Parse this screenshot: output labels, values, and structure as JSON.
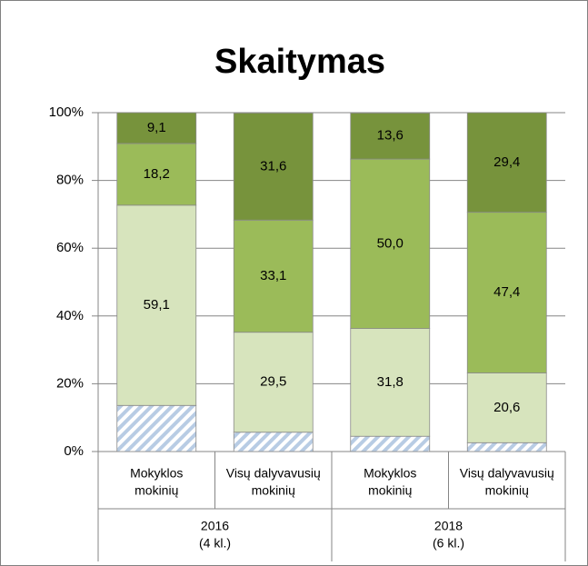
{
  "chart_data": {
    "type": "stacked_bar",
    "title": "Skaitymas",
    "groups": [
      {
        "label": [
          "2016",
          "(4 kl.)"
        ],
        "categories": [
          [
            "Mokyklos",
            "mokinių"
          ],
          [
            "Visų dalyvavusių",
            "mokinių"
          ]
        ]
      },
      {
        "label": [
          "2018",
          "(6 kl.)"
        ],
        "categories": [
          [
            "Mokyklos",
            "mokinių"
          ],
          [
            "Visų dalyvavusių",
            "mokinių"
          ]
        ]
      }
    ],
    "series": [
      {
        "color": "#b8cce4",
        "hatch": true,
        "values": [
          13.6,
          5.7,
          4.5,
          2.6
        ],
        "value_labels": [
          "13,6",
          "5,7",
          "4,5",
          "2,6"
        ]
      },
      {
        "color": "#d7e4bd",
        "values": [
          59.1,
          29.5,
          31.8,
          20.6
        ],
        "value_labels": [
          "59,1",
          "29,5",
          "31,8",
          "20,6"
        ]
      },
      {
        "color": "#9bbb59",
        "values": [
          18.2,
          33.1,
          50.0,
          47.4
        ],
        "value_labels": [
          "18,2",
          "33,1",
          "50,0",
          "47,4"
        ]
      },
      {
        "color": "#77933c",
        "values": [
          9.1,
          31.6,
          13.6,
          29.4
        ],
        "value_labels": [
          "9,1",
          "31,6",
          "13,6",
          "29,4"
        ]
      }
    ],
    "ylim": [
      0,
      100
    ],
    "yticks": [
      {
        "value": 0,
        "label": "0%"
      },
      {
        "value": 20,
        "label": "20%"
      },
      {
        "value": 40,
        "label": "40%"
      },
      {
        "value": 60,
        "label": "60%"
      },
      {
        "value": 80,
        "label": "80%"
      },
      {
        "value": 100,
        "label": "100%"
      }
    ],
    "grid": true
  }
}
